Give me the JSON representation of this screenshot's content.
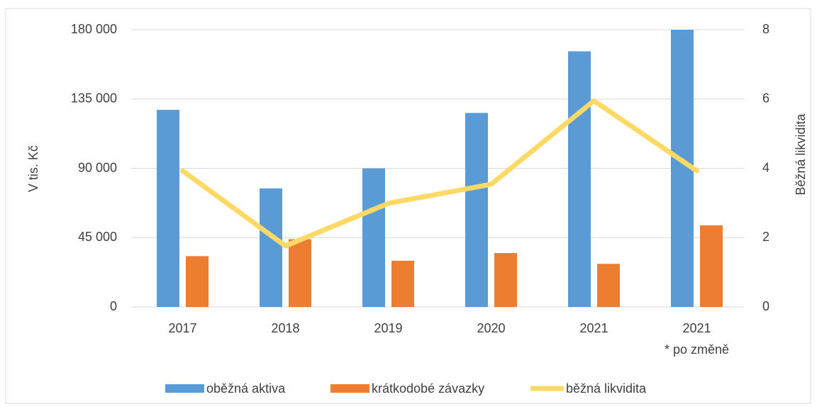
{
  "chart_data": {
    "type": "bar-line",
    "categories": [
      "2017",
      "2018",
      "2019",
      "2020",
      "2021",
      "2021"
    ],
    "annotation": "* po změně",
    "ylabel": "V tis. Kč",
    "y2label": "Běžná likvidita",
    "series": [
      {
        "name": "oběžná aktiva",
        "type": "bar",
        "color": "#5b9bd5",
        "values": [
          128000,
          77000,
          90000,
          126000,
          166000,
          180000
        ]
      },
      {
        "name": "krátkodobé závazky",
        "type": "bar",
        "color": "#ed7d31",
        "values": [
          33000,
          44000,
          30000,
          35000,
          28000,
          53000
        ]
      },
      {
        "name": "běžná likvidita",
        "type": "line",
        "axis": "y2",
        "color": "#ffd966",
        "values": [
          3.93,
          1.76,
          2.99,
          3.54,
          5.95,
          3.93
        ]
      }
    ],
    "ylim": [
      0,
      180000
    ],
    "yticks": [
      0,
      {
        "value": 45000,
        "label": "45 000"
      },
      {
        "value": 90000,
        "label": "90 000"
      },
      {
        "value": 135000,
        "label": "135 000"
      },
      {
        "value": 180000,
        "label": "180 000"
      }
    ],
    "y2lim": [
      0,
      8
    ],
    "y2ticks": [
      0,
      2,
      4,
      6,
      8
    ],
    "grid": true,
    "legend": "bottom"
  }
}
